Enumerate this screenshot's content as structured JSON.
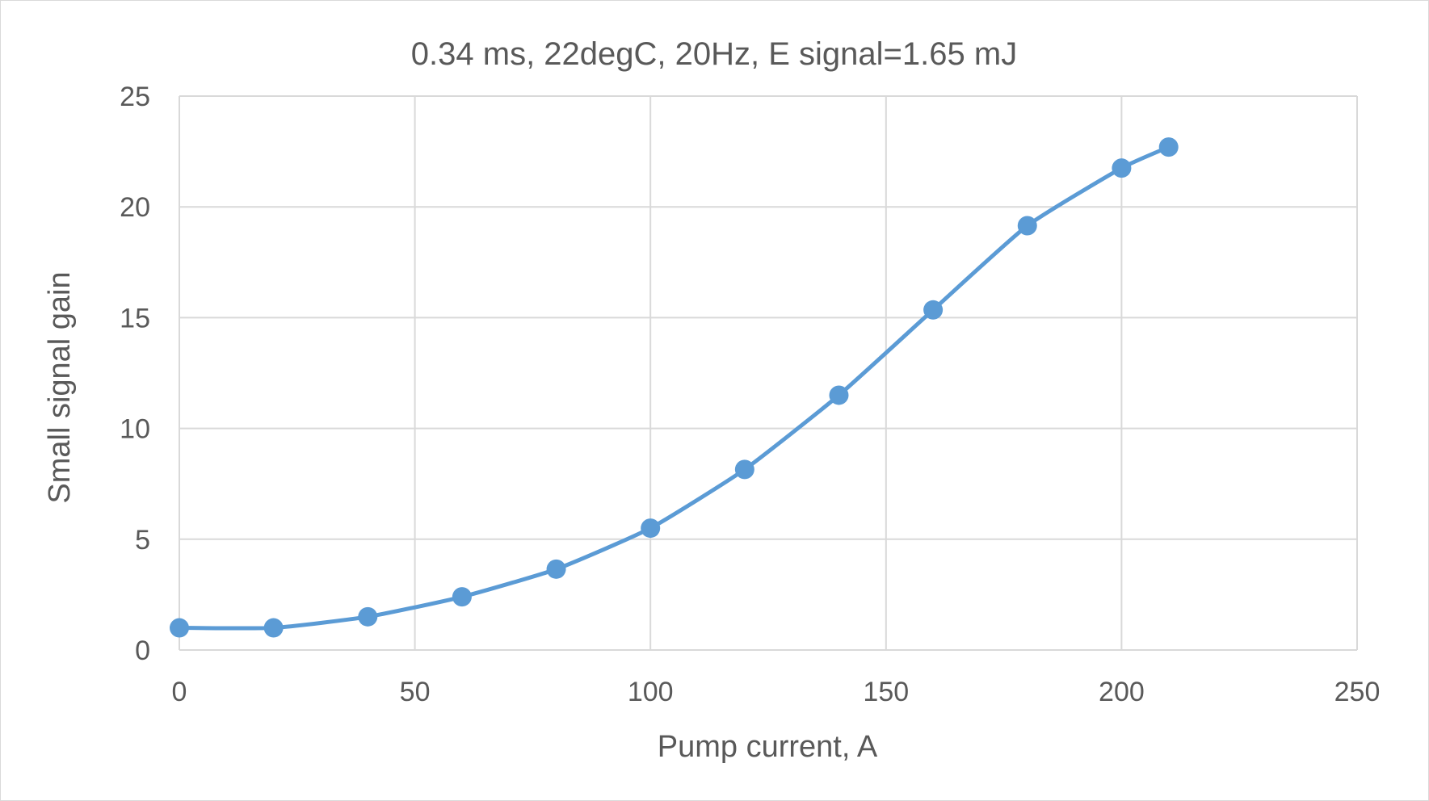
{
  "chart_data": {
    "type": "scatter",
    "title": "0.34 ms, 22degC, 20Hz, E signal=1.65 mJ",
    "xlabel": "Pump current, A",
    "ylabel": "Small signal gain",
    "xlim": [
      0,
      250
    ],
    "ylim": [
      0,
      25
    ],
    "x_ticks": [
      "0",
      "50",
      "100",
      "150",
      "200",
      "250"
    ],
    "y_ticks": [
      "0",
      "5",
      "10",
      "15",
      "20",
      "25"
    ],
    "grid": true,
    "legend": "none",
    "series": [
      {
        "color": "#5b9bd5",
        "markers": true,
        "line": "smooth",
        "x": [
          0,
          20,
          40,
          60,
          80,
          100,
          120,
          140,
          160,
          180,
          200,
          210
        ],
        "y": [
          1.0,
          1.0,
          1.5,
          2.4,
          3.65,
          5.5,
          8.15,
          11.5,
          15.35,
          19.15,
          21.75,
          22.7
        ]
      }
    ]
  }
}
